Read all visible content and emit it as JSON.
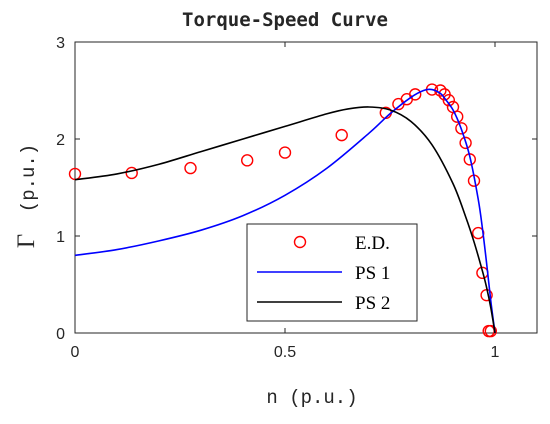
{
  "chart_data": {
    "type": "line",
    "title": "Torque-Speed Curve",
    "xlabel": "n (p.u.)",
    "ylabel": "Γ",
    "ylabel_unit": "(p.u.)",
    "xlim": [
      0,
      1.1
    ],
    "ylim": [
      0,
      3
    ],
    "xticks": [
      0,
      0.5,
      1
    ],
    "xtick_labels": [
      "0",
      "0.5",
      "1"
    ],
    "yticks": [
      0,
      1,
      2,
      3
    ],
    "ytick_labels": [
      "0",
      "1",
      "2",
      "3"
    ],
    "grid": false,
    "legend_position": "bottom-center",
    "series": [
      {
        "name": "E.D.",
        "style": "markers",
        "color": "#ff0000",
        "x": [
          0,
          0.135,
          0.275,
          0.41,
          0.5,
          0.635,
          0.74,
          0.77,
          0.79,
          0.81,
          0.85,
          0.87,
          0.88,
          0.89,
          0.9,
          0.91,
          0.92,
          0.93,
          0.94,
          0.95,
          0.96,
          0.97,
          0.98,
          0.985,
          0.99
        ],
        "y": [
          1.64,
          1.65,
          1.7,
          1.78,
          1.86,
          2.04,
          2.27,
          2.36,
          2.41,
          2.46,
          2.51,
          2.5,
          2.46,
          2.4,
          2.33,
          2.23,
          2.11,
          1.96,
          1.79,
          1.57,
          1.03,
          0.62,
          0.39,
          0.02,
          0.02
        ]
      },
      {
        "name": "PS 1",
        "style": "line",
        "color": "#0000ff",
        "x": [
          0,
          0.1,
          0.2,
          0.3,
          0.4,
          0.5,
          0.6,
          0.7,
          0.75,
          0.8,
          0.83,
          0.85,
          0.87,
          0.88,
          0.9,
          0.92,
          0.94,
          0.96,
          0.97,
          0.98,
          0.99,
          1.0
        ],
        "y": [
          0.8,
          0.86,
          0.95,
          1.06,
          1.21,
          1.42,
          1.7,
          2.06,
          2.26,
          2.43,
          2.5,
          2.51,
          2.47,
          2.42,
          2.3,
          2.1,
          1.82,
          1.38,
          1.08,
          0.72,
          0.33,
          0.0
        ]
      },
      {
        "name": "PS 2",
        "style": "line",
        "color": "#000000",
        "x": [
          0,
          0.1,
          0.2,
          0.3,
          0.4,
          0.5,
          0.6,
          0.65,
          0.7,
          0.75,
          0.8,
          0.85,
          0.9,
          0.93,
          0.95,
          0.97,
          0.98,
          0.99,
          1.0
        ],
        "y": [
          1.58,
          1.64,
          1.74,
          1.87,
          2.0,
          2.13,
          2.26,
          2.31,
          2.33,
          2.3,
          2.18,
          1.94,
          1.54,
          1.2,
          0.94,
          0.64,
          0.47,
          0.26,
          0.0
        ]
      }
    ]
  }
}
